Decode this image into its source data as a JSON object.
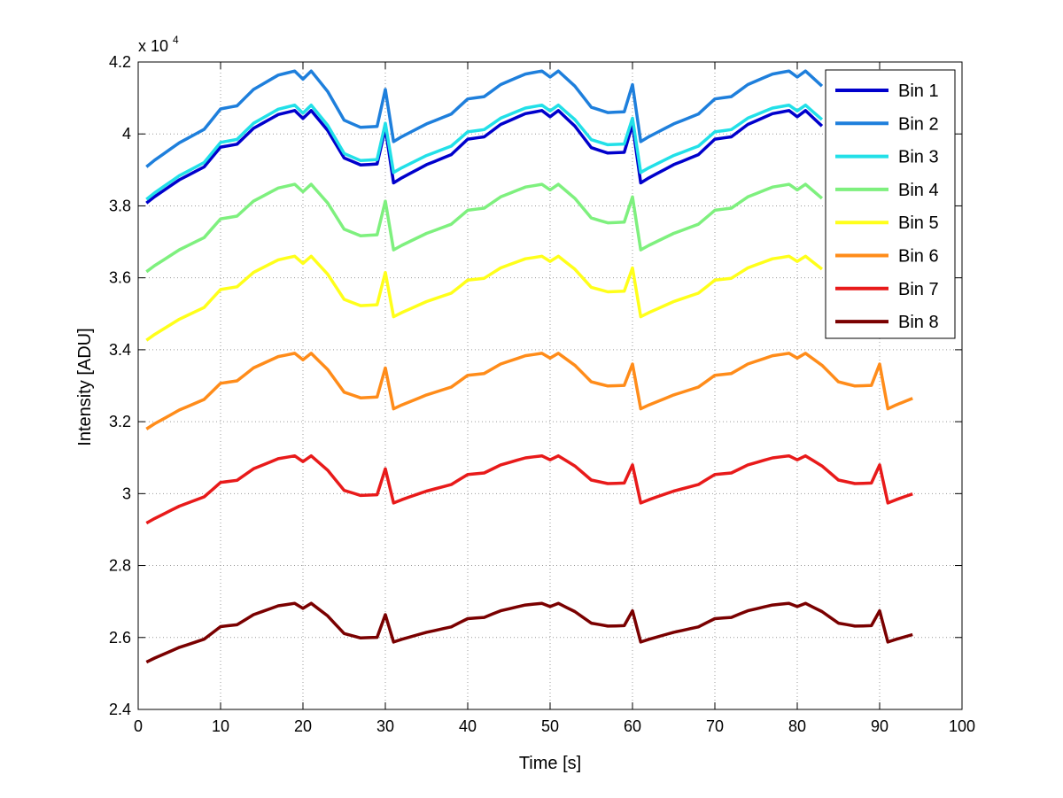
{
  "chart_data": {
    "type": "line",
    "title": "",
    "xlabel": "Time [s]",
    "ylabel": "Intensity [ADU]",
    "xlim": [
      0,
      100
    ],
    "ylim": [
      24000,
      42000
    ],
    "y_exponent_label": "x 10",
    "y_exponent_power": "4",
    "grid": true,
    "legend_position": "top-right",
    "x_ticks": [
      "0",
      "10",
      "20",
      "30",
      "40",
      "50",
      "60",
      "70",
      "80",
      "90",
      "100"
    ],
    "y_ticks": [
      "2.4",
      "2.6",
      "2.8",
      "3",
      "3.2",
      "3.4",
      "3.6",
      "3.8",
      "4",
      "4.2"
    ],
    "shape": [
      {
        "t": 0,
        "v": 0.0
      },
      {
        "t": 2,
        "v": 0.13
      },
      {
        "t": 5,
        "v": 0.3
      },
      {
        "t": 8,
        "v": 0.43
      },
      {
        "t": 10,
        "v": 0.63
      },
      {
        "t": 12,
        "v": 0.66
      },
      {
        "t": 14,
        "v": 0.82
      },
      {
        "t": 17,
        "v": 0.96
      },
      {
        "t": 19,
        "v": 1.0
      },
      {
        "t": 20,
        "v": 0.92
      },
      {
        "t": 21,
        "v": 1.0
      },
      {
        "t": 23,
        "v": 0.8
      },
      {
        "t": 25,
        "v": 0.52
      },
      {
        "t": 27,
        "v": 0.45
      },
      {
        "t": 29,
        "v": 0.46
      },
      {
        "t": 30,
        "v": 0.82
      },
      {
        "t": 30.9,
        "v": 0.2
      }
    ],
    "series": [
      {
        "name": "Bin 1",
        "color": "#0000cc",
        "start": 37900,
        "base": 38500,
        "peak": 40650,
        "end_x": 83.5
      },
      {
        "name": "Bin 2",
        "color": "#1e7fdc",
        "start": 38900,
        "base": 39650,
        "peak": 41750,
        "end_x": 83.5
      },
      {
        "name": "Bin 3",
        "color": "#22e0e8",
        "start": 38000,
        "base": 38800,
        "peak": 40800,
        "end_x": 83.5
      },
      {
        "name": "Bin 4",
        "color": "#7ef07e",
        "start": 36000,
        "base": 36650,
        "peak": 38600,
        "end_x": 83.5
      },
      {
        "name": "Bin 5",
        "color": "#ffff1a",
        "start": 34100,
        "base": 34800,
        "peak": 36600,
        "end_x": 83.5
      },
      {
        "name": "Bin 6",
        "color": "#ff8c1a",
        "start": 31650,
        "base": 32250,
        "peak": 33900,
        "end_x": 94
      },
      {
        "name": "Bin 7",
        "color": "#e81a1a",
        "start": 29050,
        "base": 29650,
        "peak": 31050,
        "end_x": 94
      },
      {
        "name": "Bin 8",
        "color": "#7a0000",
        "start": 25200,
        "base": 25800,
        "peak": 26950,
        "end_x": 94
      }
    ]
  }
}
